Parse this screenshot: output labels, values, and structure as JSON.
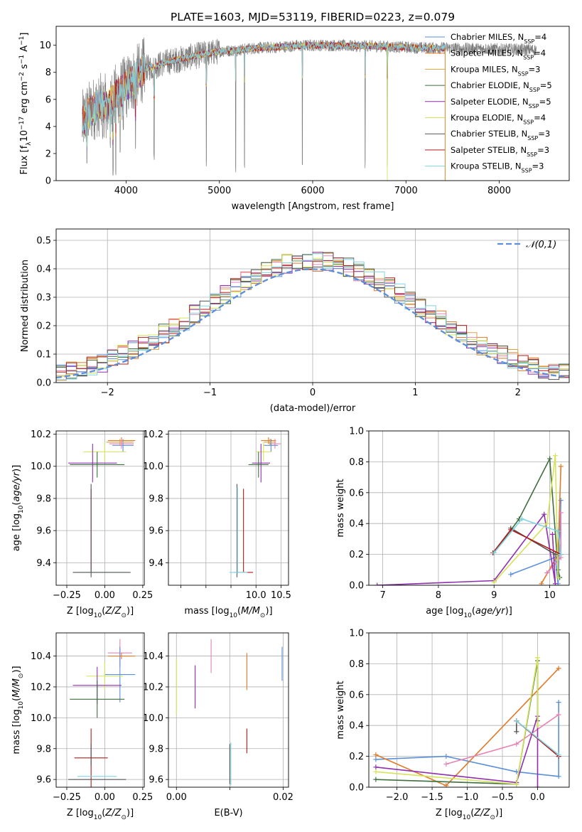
{
  "figure_title": "PLATE=1603, MJD=53119, FIBERID=0223, z=0.079",
  "colors": {
    "Chabrier MILES": "#5b8fd9",
    "Salpeter MILES": "#e07a28",
    "Kroupa MILES": "#d9a441",
    "Chabrier ELODIE": "#3f6e3f",
    "Salpeter ELODIE": "#8f2fae",
    "Kroupa ELODIE": "#d5e35a",
    "Chabrier STELIB": "#555555",
    "Salpeter STELIB": "#b31b1b",
    "Kroupa STELIB": "#80d4e0",
    "pink": "#e882b4",
    "data_gray": "#7f7f7f",
    "normal_curve": "#5b8fd9"
  },
  "chart_data": [
    {
      "id": "spectrum",
      "type": "line",
      "title": "",
      "xlabel": "wavelength [Angstrom, rest frame]",
      "ylabel": "Flux [f_λ 10^-17 erg cm^-2 s^-1 A^-1]",
      "xlim": [
        3250,
        8750
      ],
      "ylim": [
        0,
        11.4
      ],
      "xticks": [
        4000,
        5000,
        6000,
        7000,
        8000
      ],
      "yticks": [
        0,
        2,
        4,
        6,
        8,
        10
      ],
      "grid": false,
      "legend_position": "right",
      "legend": [
        {
          "label": "Chabrier MILES, N",
          "sub": "SSP",
          "tail": "=4",
          "series": "Chabrier MILES"
        },
        {
          "label": "Salpeter MILES, N",
          "sub": "SSP",
          "tail": "=4",
          "series": "Salpeter MILES"
        },
        {
          "label": "Kroupa MILES, N",
          "sub": "SSP",
          "tail": "=3",
          "series": "Kroupa MILES"
        },
        {
          "label": "Chabrier ELODIE, N",
          "sub": "SSP",
          "tail": "=5",
          "series": "Chabrier ELODIE"
        },
        {
          "label": "Salpeter ELODIE, N",
          "sub": "SSP",
          "tail": "=5",
          "series": "Salpeter ELODIE"
        },
        {
          "label": "Kroupa ELODIE, N",
          "sub": "SSP",
          "tail": "=4",
          "series": "Kroupa ELODIE"
        },
        {
          "label": "Chabrier STELIB, N",
          "sub": "SSP",
          "tail": "=3",
          "series": "Chabrier STELIB"
        },
        {
          "label": "Salpeter STELIB, N",
          "sub": "SSP",
          "tail": "=3",
          "series": "Salpeter STELIB"
        },
        {
          "label": "Kroupa STELIB, N",
          "sub": "SSP",
          "tail": "=3",
          "series": "Kroupa STELIB"
        }
      ],
      "continuum": [
        [
          3530,
          4.3
        ],
        [
          3600,
          5.0
        ],
        [
          3700,
          5.6
        ],
        [
          3800,
          5.5
        ],
        [
          3900,
          6.4
        ],
        [
          4000,
          6.9
        ],
        [
          4100,
          7.6
        ],
        [
          4200,
          8.3
        ],
        [
          4300,
          8.4
        ],
        [
          4400,
          8.7
        ],
        [
          4600,
          9.0
        ],
        [
          4800,
          9.3
        ],
        [
          5000,
          9.55
        ],
        [
          5200,
          9.65
        ],
        [
          5400,
          9.8
        ],
        [
          5600,
          9.85
        ],
        [
          5800,
          9.95
        ],
        [
          6000,
          10.0
        ],
        [
          6200,
          10.0
        ],
        [
          6400,
          9.95
        ],
        [
          6600,
          9.95
        ],
        [
          6800,
          9.9
        ],
        [
          7000,
          9.85
        ],
        [
          7200,
          9.8
        ],
        [
          7400,
          9.8
        ],
        [
          7600,
          9.75
        ],
        [
          7800,
          9.75
        ],
        [
          8000,
          9.7
        ],
        [
          8200,
          9.7
        ],
        [
          8400,
          9.65
        ]
      ],
      "data_range": [
        3530,
        8400
      ],
      "model_range": [
        3530,
        7420
      ],
      "absorption_lines": [
        [
          3580,
          1.0
        ],
        [
          3700,
          3.5
        ],
        [
          3750,
          3.0
        ],
        [
          3800,
          4.8
        ],
        [
          3830,
          2.0
        ],
        [
          3860,
          0.3
        ],
        [
          3890,
          0.2
        ],
        [
          3935,
          1.8
        ],
        [
          3970,
          3.6
        ],
        [
          4100,
          2.0
        ],
        [
          4300,
          1.2
        ],
        [
          4860,
          1.0
        ],
        [
          5175,
          0.6
        ],
        [
          5270,
          0.5
        ],
        [
          5890,
          0.7
        ],
        [
          6563,
          0.9
        ],
        [
          6800,
          1.0
        ]
      ],
      "model_dropouts": [
        {
          "series": "Kroupa ELODIE",
          "x": 6800,
          "to": 0
        },
        {
          "series": "Salpeter STELIB",
          "x": 7420,
          "to": 0
        },
        {
          "series": "Salpeter MILES",
          "x": 7420,
          "to": 0
        },
        {
          "series": "Kroupa MILES",
          "x": 7420,
          "to": 0
        }
      ]
    },
    {
      "id": "residual_hist",
      "type": "histogram",
      "title": "",
      "xlabel": "(data-model)/error",
      "ylabel": "Normed distribution",
      "xlim": [
        -2.5,
        2.5
      ],
      "ylim": [
        0,
        0.54
      ],
      "xticks": [
        -2,
        -1,
        0,
        1,
        2
      ],
      "yticks": [
        0.0,
        0.1,
        0.2,
        0.3,
        0.4,
        0.5
      ],
      "grid": true,
      "legend_position": "top-right",
      "legend": [
        {
          "label": "𝒩(0,1)",
          "style": "dashed",
          "color": "#5b8fd9"
        }
      ],
      "bin_width": 0.1,
      "normal_pdf": {
        "mu": 0,
        "sigma": 1
      }
    },
    {
      "id": "age_vs_Z",
      "type": "errorbar",
      "xlabel": "Z [log₁₀(Z/Z⊙)]",
      "ylabel": "age  [log₁₀(age/yr)]",
      "xlim": [
        -0.32,
        0.26
      ],
      "ylim": [
        9.26,
        10.22
      ],
      "xticks": [
        -0.25,
        0.0,
        0.25
      ],
      "yticks": [
        9.4,
        9.6,
        9.8,
        10.0,
        10.2
      ],
      "grid": true,
      "points": [
        {
          "series": "Chabrier MILES",
          "x": 0.12,
          "xerr": 0.07,
          "y": 10.13,
          "yerr": 0.04
        },
        {
          "series": "Salpeter MILES",
          "x": 0.11,
          "xerr": 0.09,
          "y": 10.16,
          "yerr": 0.02
        },
        {
          "series": "Kroupa MILES",
          "x": 0.1,
          "xerr": 0.09,
          "y": 10.15,
          "yerr": 0.02
        },
        {
          "series": "pink",
          "x": 0.11,
          "xerr": 0.08,
          "y": 10.14,
          "yerr": 0.03
        },
        {
          "series": "Kroupa ELODIE",
          "x": 0.0,
          "xerr": 0.14,
          "y": 10.09,
          "yerr": 0.06
        },
        {
          "series": "Salpeter ELODIE",
          "x": -0.08,
          "xerr": 0.16,
          "y": 10.02,
          "yerr": 0.12
        },
        {
          "series": "Chabrier ELODIE",
          "x": -0.05,
          "xerr": 0.18,
          "y": 10.01,
          "yerr": 0.08
        },
        {
          "series": "Salpeter STELIB",
          "x": -0.09,
          "xerr": 0.0,
          "y": 9.6,
          "yerr": 0.26
        },
        {
          "series": "Chabrier STELIB",
          "x": -0.09,
          "xerr": 0.0,
          "y": 9.6,
          "yerr": 0.29
        },
        {
          "series": "Kroupa STELIB",
          "x": -0.02,
          "xerr": 0.16,
          "y": 9.34,
          "yerr": 0.0
        },
        {
          "series": "Chabrier STELIB",
          "x": -0.02,
          "xerr": 0.19,
          "y": 9.34,
          "yerr": 0.0
        }
      ]
    },
    {
      "id": "age_vs_mass",
      "type": "errorbar",
      "xlabel": "mass [log₁₀(M/M⊙)]",
      "ylabel": "",
      "xlim": [
        8.25,
        10.65
      ],
      "ylim": [
        9.26,
        10.22
      ],
      "xticks": [
        8.0,
        8.5,
        9.0,
        9.5,
        10.0,
        10.5
      ],
      "xticklabels": [
        "",
        "",
        "",
        "",
        "10.0",
        "10.5"
      ],
      "yticks": [
        9.4,
        9.6,
        9.8,
        10.0,
        10.2
      ],
      "grid": true,
      "points": [
        {
          "series": "Salpeter MILES",
          "x": 10.25,
          "xerr": 0.15,
          "y": 10.16,
          "yerr": 0.02
        },
        {
          "series": "pink",
          "x": 10.38,
          "xerr": 0.12,
          "y": 10.14,
          "yerr": 0.03
        },
        {
          "series": "Chabrier MILES",
          "x": 10.3,
          "xerr": 0.14,
          "y": 10.13,
          "yerr": 0.04
        },
        {
          "series": "Kroupa MILES",
          "x": 10.28,
          "xerr": 0.12,
          "y": 10.15,
          "yerr": 0.02
        },
        {
          "series": "Kroupa ELODIE",
          "x": 10.15,
          "xerr": 0.15,
          "y": 10.09,
          "yerr": 0.06
        },
        {
          "series": "Salpeter ELODIE",
          "x": 10.1,
          "xerr": 0.18,
          "y": 10.02,
          "yerr": 0.12
        },
        {
          "series": "Chabrier ELODIE",
          "x": 10.05,
          "xerr": 0.2,
          "y": 10.01,
          "yerr": 0.08
        },
        {
          "series": "Salpeter STELIB",
          "x": 9.75,
          "xerr": 0.0,
          "y": 9.6,
          "yerr": 0.26
        },
        {
          "series": "Chabrier STELIB",
          "x": 9.62,
          "xerr": 0.0,
          "y": 9.6,
          "yerr": 0.29
        },
        {
          "series": "Kroupa STELIB",
          "x": 9.63,
          "xerr": 0.0,
          "y": 9.6,
          "yerr": 0.27
        },
        {
          "series": "Salpeter STELIB",
          "x": 9.75,
          "xerr": 0.19,
          "y": 9.34,
          "yerr": 0.0
        },
        {
          "series": "Kroupa STELIB",
          "x": 9.65,
          "xerr": 0.18,
          "y": 9.34,
          "yerr": 0.0
        }
      ]
    },
    {
      "id": "weight_vs_age",
      "type": "line",
      "xlabel": "age  [log₁₀(age/yr)]",
      "ylabel": "mass weight",
      "xlim": [
        6.75,
        10.35
      ],
      "ylim": [
        0,
        1.0
      ],
      "xticks": [
        7,
        8,
        9,
        10
      ],
      "yticks": [
        0.0,
        0.2,
        0.4,
        0.6,
        0.8,
        1.0
      ],
      "grid": true,
      "series": [
        {
          "series": "Chabrier MILES",
          "x": [
            9.3,
            10.1,
            10.15,
            10.2
          ],
          "y": [
            0.07,
            0.18,
            0.01,
            0.55
          ]
        },
        {
          "series": "Salpeter MILES",
          "x": [
            9.85,
            10.15,
            10.2
          ],
          "y": [
            0.01,
            0.2,
            0.77
          ]
        },
        {
          "series": "pink",
          "x": [
            9.95,
            10.2,
            10.2
          ],
          "y": [
            0.08,
            0.18,
            0.47
          ]
        },
        {
          "series": "Chabrier ELODIE",
          "x": [
            9.0,
            9.45,
            10.0,
            10.15,
            10.18
          ],
          "y": [
            0.21,
            0.43,
            0.82,
            0.1,
            0.05
          ]
        },
        {
          "series": "Salpeter ELODIE",
          "x": [
            6.9,
            9.0,
            9.9,
            10.1,
            10.05
          ],
          "y": [
            0.0,
            0.03,
            0.46,
            0.01,
            0.33
          ]
        },
        {
          "series": "Kroupa ELODIE",
          "x": [
            9.0,
            9.95,
            10.1,
            10.15
          ],
          "y": [
            0.02,
            0.4,
            0.84,
            0.05
          ]
        },
        {
          "series": "Chabrier STELIB",
          "x": [
            9.3,
            10.1
          ],
          "y": [
            0.37,
            0.2
          ]
        },
        {
          "series": "Salpeter STELIB",
          "x": [
            8.98,
            9.3,
            10.2
          ],
          "y": [
            0.21,
            0.36,
            0.2
          ]
        },
        {
          "series": "Kroupa STELIB",
          "x": [
            9.0,
            9.5,
            10.15,
            10.2
          ],
          "y": [
            0.21,
            0.43,
            0.35,
            0.2
          ]
        }
      ]
    },
    {
      "id": "mass_vs_Z",
      "type": "errorbar",
      "xlabel": "Z [log₁₀(Z/Z⊙)]",
      "ylabel": "mass [log₁₀(M/M⊙)]",
      "xlim": [
        -0.32,
        0.26
      ],
      "ylim": [
        9.55,
        10.55
      ],
      "xticks": [
        -0.25,
        0.0,
        0.25
      ],
      "yticks": [
        9.6,
        9.8,
        10.0,
        10.2,
        10.4
      ],
      "grid": true,
      "points": [
        {
          "series": "pink",
          "x": 0.1,
          "xerr": 0.08,
          "y": 10.42,
          "yerr": 0.09
        },
        {
          "series": "Salpeter MILES",
          "x": 0.11,
          "xerr": 0.09,
          "y": 10.4,
          "yerr": 0.02
        },
        {
          "series": "Chabrier MILES",
          "x": 0.1,
          "xerr": 0.1,
          "y": 10.28,
          "yerr": 0.18
        },
        {
          "series": "Kroupa ELODIE",
          "x": 0.0,
          "xerr": 0.12,
          "y": 10.27,
          "yerr": 0.09
        },
        {
          "series": "Salpeter ELODIE",
          "x": -0.05,
          "xerr": 0.16,
          "y": 10.21,
          "yerr": 0.12
        },
        {
          "series": "Chabrier ELODIE",
          "x": -0.05,
          "xerr": 0.18,
          "y": 10.12,
          "yerr": 0.12
        },
        {
          "series": "Salpeter STELIB",
          "x": -0.09,
          "xerr": 0.11,
          "y": 9.74,
          "yerr": 0.19
        },
        {
          "series": "Chabrier STELIB",
          "x": -0.09,
          "xerr": 0.0,
          "y": 9.76,
          "yerr": 0.07
        },
        {
          "series": "Kroupa STELIB",
          "x": -0.05,
          "xerr": 0.13,
          "y": 9.62,
          "yerr": 0.0
        },
        {
          "series": "Chabrier STELIB",
          "x": -0.05,
          "xerr": 0.19,
          "y": 9.6,
          "yerr": 0.0
        }
      ]
    },
    {
      "id": "mass_vs_ebv",
      "type": "errorbar",
      "xlabel": "E(B-V)",
      "ylabel": "",
      "xlim": [
        -0.0015,
        0.021
      ],
      "ylim": [
        9.55,
        10.55
      ],
      "xticks": [
        0.0,
        0.02
      ],
      "xticklabels": [
        "0.00",
        "0.02"
      ],
      "minor_xticks": [
        0.01
      ],
      "yticks": [
        9.6,
        9.8,
        10.0,
        10.2,
        10.4
      ],
      "grid": true,
      "points": [
        {
          "series": "Kroupa ELODIE",
          "x": 0.0,
          "y": 10.2,
          "yerr": 0.18
        },
        {
          "series": "Salpeter ELODIE",
          "x": 0.0035,
          "y": 10.2,
          "yerr": 0.14
        },
        {
          "series": "pink",
          "x": 0.0065,
          "y": 10.4,
          "yerr": 0.11
        },
        {
          "series": "Salpeter MILES",
          "x": 0.0132,
          "y": 10.3,
          "yerr": 0.12
        },
        {
          "series": "Chabrier MILES",
          "x": 0.0198,
          "y": 10.35,
          "yerr": 0.11
        },
        {
          "series": "Salpeter STELIB",
          "x": 0.0132,
          "y": 9.85,
          "yerr": 0.08
        },
        {
          "series": "Chabrier STELIB",
          "x": 0.01,
          "y": 9.7,
          "yerr": 0.13
        },
        {
          "series": "Kroupa STELIB",
          "x": 0.0102,
          "y": 9.7,
          "yerr": 0.14
        }
      ]
    },
    {
      "id": "weight_vs_Z",
      "type": "line",
      "xlabel": "Z [log₁₀(Z/Z⊙)]",
      "ylabel": "mass weight",
      "xlim": [
        -2.4,
        0.45
      ],
      "ylim": [
        0,
        1.0
      ],
      "xticks": [
        -2.0,
        -1.5,
        -1.0,
        -0.5,
        0.0
      ],
      "yticks": [
        0.0,
        0.2,
        0.4,
        0.6,
        0.8,
        1.0
      ],
      "grid": true,
      "series": [
        {
          "series": "Chabrier MILES",
          "x": [
            -2.3,
            -1.3,
            -0.3,
            0.3,
            0.3,
            0.3
          ],
          "y": [
            0.18,
            0.2,
            0.1,
            0.07,
            0.55,
            0.2
          ]
        },
        {
          "series": "Salpeter MILES",
          "x": [
            -2.3,
            -1.3,
            0.3
          ],
          "y": [
            0.21,
            0.01,
            0.77
          ]
        },
        {
          "series": "pink",
          "x": [
            -1.3,
            -0.3,
            0.3
          ],
          "y": [
            0.15,
            0.28,
            0.47
          ]
        },
        {
          "series": "Chabrier ELODIE",
          "x": [
            -2.3,
            -0.3,
            0.0,
            0.0
          ],
          "y": [
            0.05,
            0.02,
            0.82,
            0.43
          ]
        },
        {
          "series": "Salpeter ELODIE",
          "x": [
            -2.3,
            -0.3,
            0.0,
            0.0
          ],
          "y": [
            0.13,
            0.03,
            0.46,
            0.0
          ]
        },
        {
          "series": "Kroupa ELODIE",
          "x": [
            -2.3,
            -0.3,
            0.0,
            0.0
          ],
          "y": [
            0.1,
            0.02,
            0.84,
            0.4
          ]
        },
        {
          "series": "Chabrier STELIB",
          "x": [
            -0.3,
            -0.3
          ],
          "y": [
            0.43,
            0.36
          ]
        },
        {
          "series": "Salpeter STELIB",
          "x": [
            -0.3,
            0.3
          ],
          "y": [
            0.43,
            0.2
          ]
        },
        {
          "series": "Kroupa STELIB",
          "x": [
            -0.3,
            0.3
          ],
          "y": [
            0.43,
            0.21
          ]
        }
      ]
    }
  ]
}
